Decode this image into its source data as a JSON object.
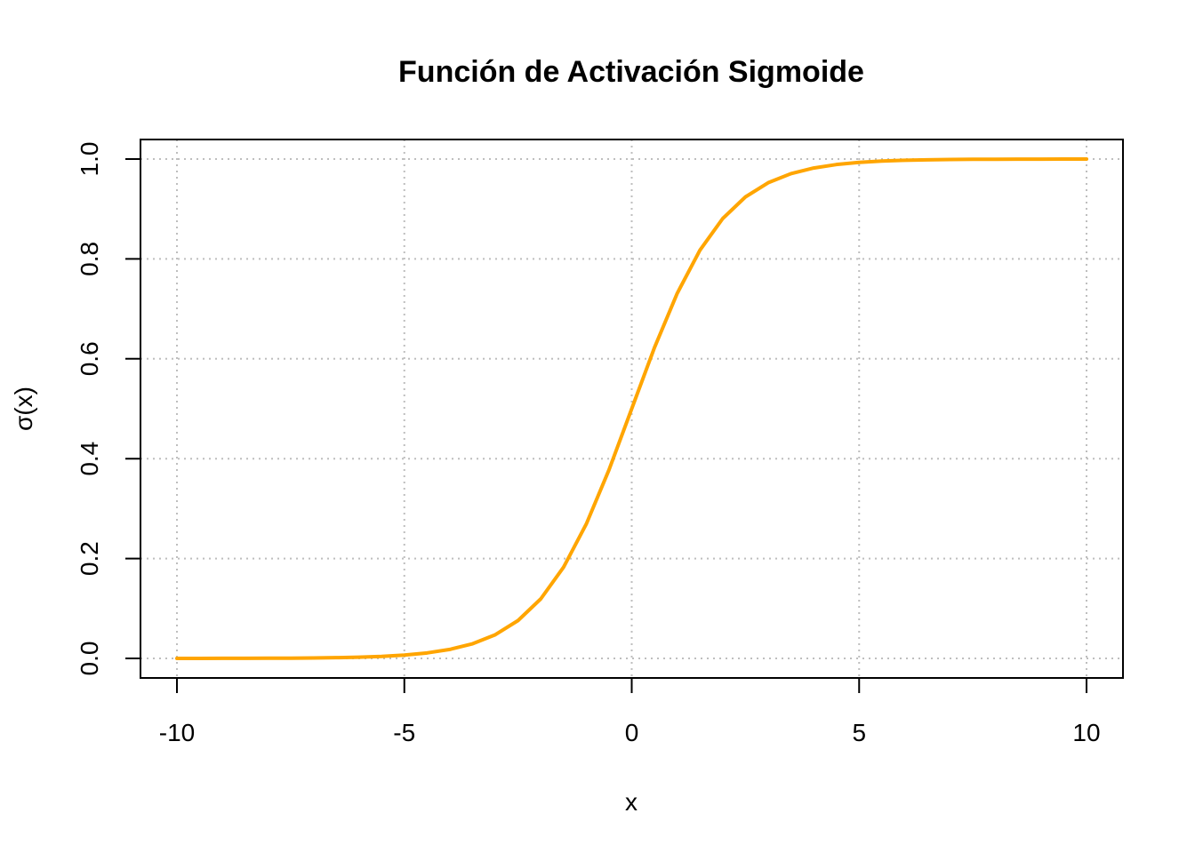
{
  "chart_data": {
    "type": "line",
    "title": "Función de Activación Sigmoide",
    "xlabel": "x",
    "ylabel": "σ(x)",
    "xlim": [
      -10,
      10
    ],
    "ylim": [
      0,
      1
    ],
    "x_ticks": [
      -10,
      -5,
      0,
      5,
      10
    ],
    "x_tick_labels": [
      "-10",
      "-5",
      "0",
      "5",
      "10"
    ],
    "y_ticks": [
      0,
      0.2,
      0.4,
      0.6,
      0.8,
      1
    ],
    "y_tick_labels": [
      "0.0",
      "0.2",
      "0.4",
      "0.6",
      "0.8",
      "1.0"
    ],
    "grid": true,
    "legend": false,
    "line_color": "#FFA500",
    "grid_color": "#BEBEBE",
    "series": [
      {
        "x": [
          -10,
          -9.5,
          -9,
          -8.5,
          -8,
          -7.5,
          -7,
          -6.5,
          -6,
          -5.5,
          -5,
          -4.5,
          -4,
          -3.5,
          -3,
          -2.5,
          -2,
          -1.5,
          -1,
          -0.5,
          0,
          0.5,
          1,
          1.5,
          2,
          2.5,
          3,
          3.5,
          4,
          4.5,
          5,
          5.5,
          6,
          6.5,
          7,
          7.5,
          8,
          8.5,
          9,
          9.5,
          10
        ],
        "values": [
          4.54e-05,
          7.49e-05,
          0.0001234,
          0.0002035,
          0.0003354,
          0.0005527,
          0.0009111,
          0.0015011,
          0.0024726,
          0.0040701,
          0.0066929,
          0.0109869,
          0.0179862,
          0.0293122,
          0.0474259,
          0.0758582,
          0.1192029,
          0.1824255,
          0.2689414,
          0.3775407,
          0.5,
          0.6224593,
          0.7310586,
          0.8175745,
          0.8807971,
          0.9241418,
          0.9525741,
          0.9706878,
          0.9820138,
          0.9890131,
          0.9933071,
          0.9959299,
          0.9975274,
          0.9984989,
          0.9990889,
          0.9994473,
          0.9996646,
          0.9997965,
          0.9998766,
          0.9999251,
          0.9999546
        ]
      }
    ]
  }
}
